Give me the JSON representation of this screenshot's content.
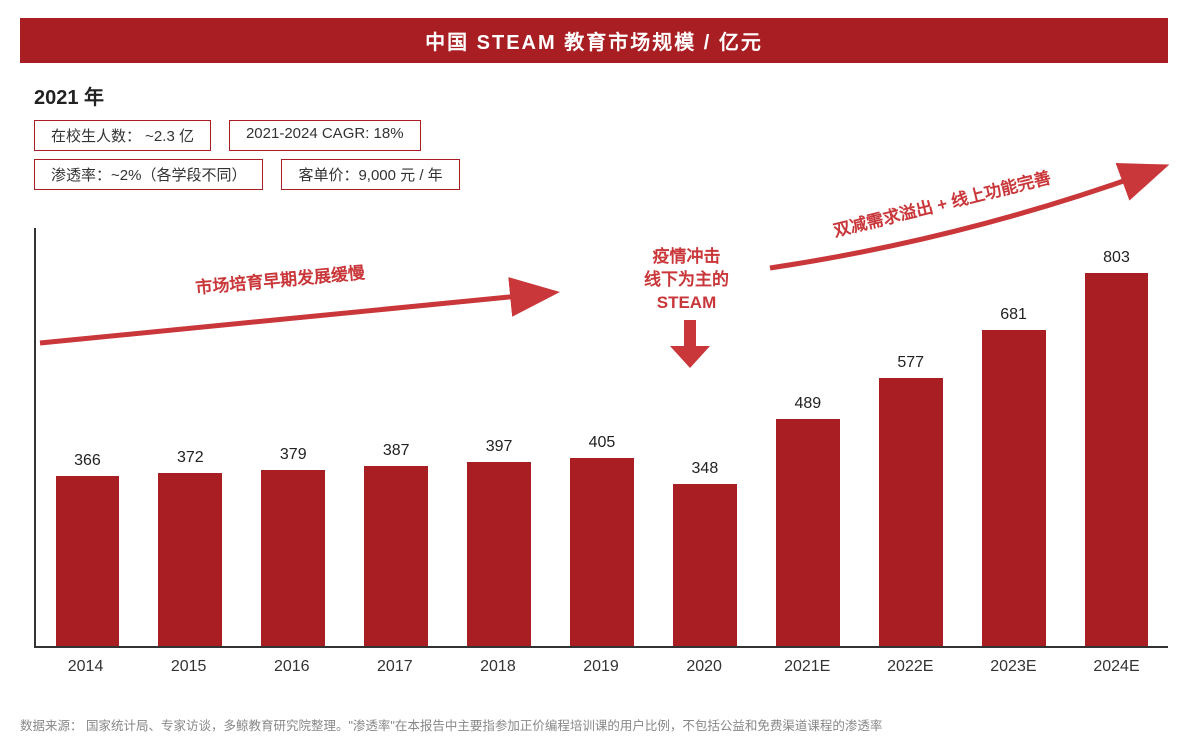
{
  "title": "中国 STEAM 教育市场规模 / 亿元",
  "subtitle": "2021 年",
  "info_boxes": {
    "row1": [
      "在校生人数：  ~2.3 亿",
      "2021-2024 CAGR: 18%"
    ],
    "row2": [
      "渗透率：~2%（各学段不同）",
      "客单价：9,000 元 / 年"
    ]
  },
  "chart": {
    "type": "bar",
    "categories": [
      "2014",
      "2015",
      "2016",
      "2017",
      "2018",
      "2019",
      "2020",
      "2021E",
      "2022E",
      "2023E",
      "2024E"
    ],
    "values": [
      366,
      372,
      379,
      387,
      397,
      405,
      348,
      489,
      577,
      681,
      803
    ],
    "y_max": 900,
    "bar_color": "#a91e22",
    "axis_color": "#333333",
    "label_font_size": 16,
    "value_label_color": "#222222",
    "background_color": "#ffffff"
  },
  "annotations": {
    "left_text": "市场培育早期发展缓慢",
    "mid_text_l1": "疫情冲击",
    "mid_text_l2": "线下为主的",
    "mid_text_l3": "STEAM",
    "right_text": "双减需求溢出 + 线上功能完善",
    "arrow_color": "#c9373a"
  },
  "footnote": "数据来源：  国家统计局、专家访谈，多鲸教育研究院整理。\"渗透率\"在本报告中主要指参加正价编程培训课的用户比例，不包括公益和免费渠道课程的渗透率"
}
